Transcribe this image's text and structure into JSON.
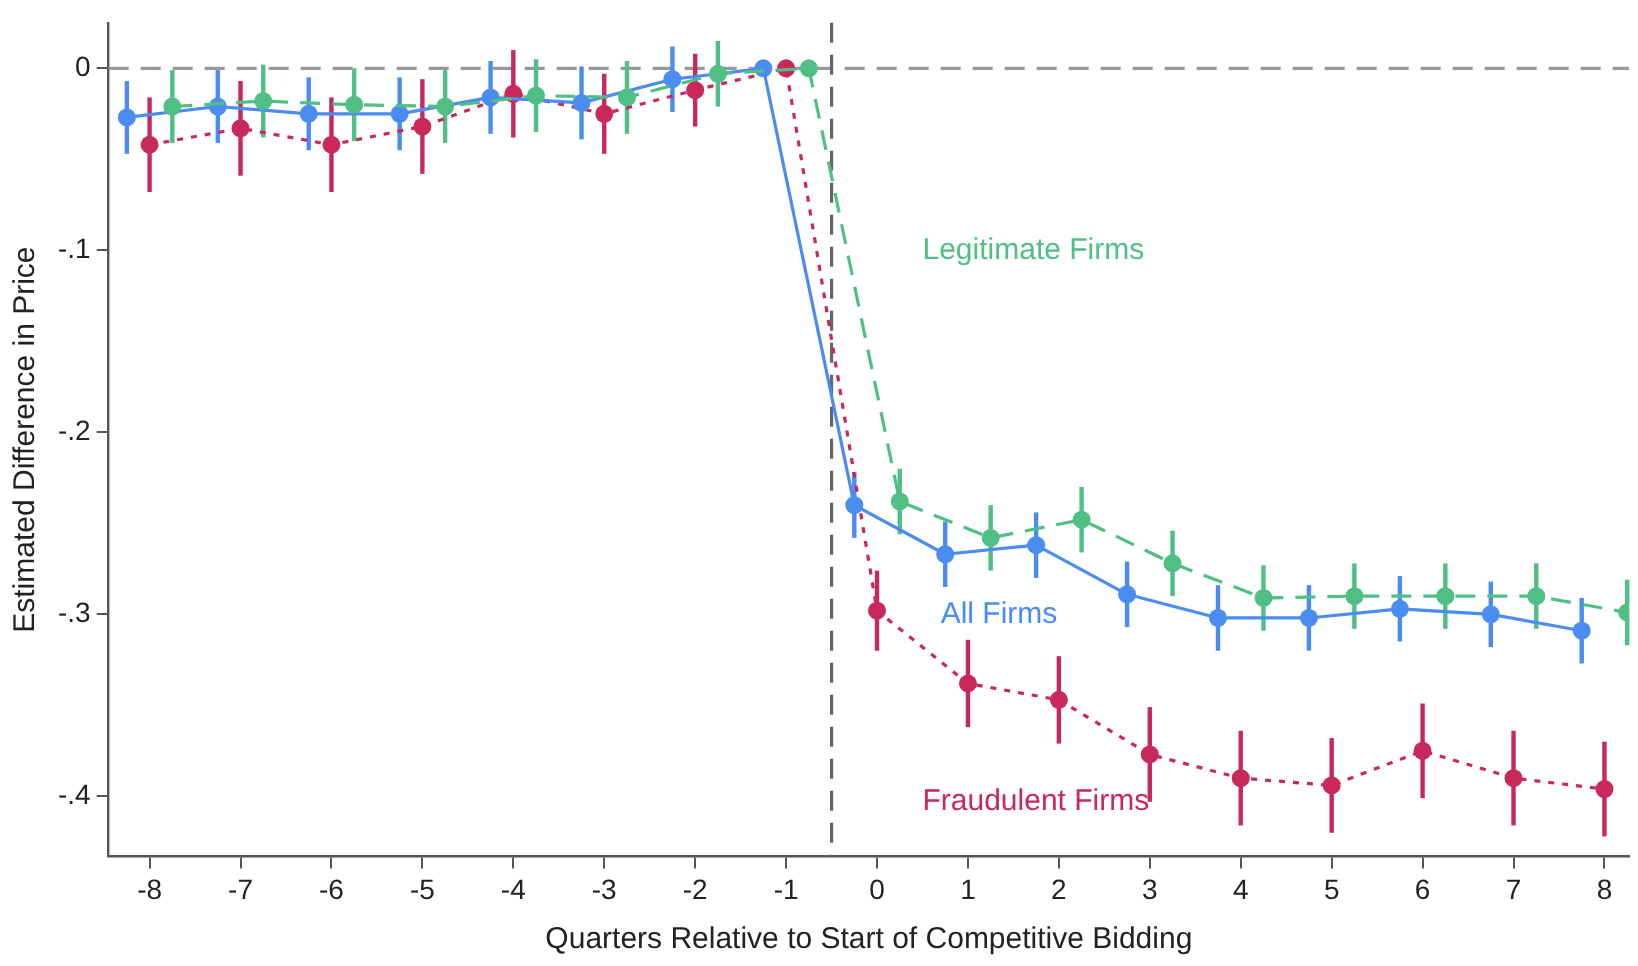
{
  "chart_data": {
    "type": "line",
    "xlabel": "Quarters Relative to Start of Competitive Bidding",
    "ylabel": "Estimated Difference in Price",
    "xlim": [
      -8.45,
      8.27
    ],
    "xticks": [
      -8,
      -7,
      -6,
      -5,
      -4,
      -3,
      -2,
      -1,
      0,
      1,
      2,
      3,
      4,
      5,
      6,
      7,
      8
    ],
    "ylim": [
      -0.433,
      0.025
    ],
    "yticks": [
      {
        "value": 0,
        "label": "0"
      },
      {
        "value": -0.1,
        "label": "-.1"
      },
      {
        "value": -0.2,
        "label": "-.2"
      },
      {
        "value": -0.3,
        "label": "-.3"
      },
      {
        "value": -0.4,
        "label": "-.4"
      }
    ],
    "grid": false,
    "legend": false,
    "marker": "circle",
    "ref_lines": [
      {
        "axis": "y",
        "value": 0,
        "color": "#999999",
        "line_style": "dashed"
      },
      {
        "axis": "x",
        "value": -0.5,
        "color": "#666666",
        "line_style": "dashed"
      }
    ],
    "series": [
      {
        "name": "Legitimate Firms",
        "color": "#4fbf84",
        "line_style": "dashed",
        "x": [
          -7.75,
          -6.75,
          -5.75,
          -4.75,
          -3.75,
          -2.75,
          -1.75,
          -0.75,
          0.25,
          1.25,
          2.25,
          3.25,
          4.25,
          5.25,
          6.25,
          7.25,
          8.25
        ],
        "values": [
          -0.021,
          -0.018,
          -0.02,
          -0.021,
          -0.015,
          -0.016,
          -0.003,
          0,
          -0.238,
          -0.258,
          -0.248,
          -0.272,
          -0.291,
          -0.29,
          -0.29,
          -0.29,
          -0.299
        ],
        "errors": [
          0.02,
          0.02,
          0.02,
          0.02,
          0.02,
          0.02,
          0.018,
          null,
          0.018,
          0.018,
          0.018,
          0.018,
          0.018,
          0.018,
          0.018,
          0.018,
          0.018
        ]
      },
      {
        "name": "All Firms",
        "color": "#4a8cf0",
        "line_style": "solid",
        "x": [
          -8.25,
          -7.25,
          -6.25,
          -5.25,
          -4.25,
          -3.25,
          -2.25,
          -1.25,
          -0.25,
          0.75,
          1.75,
          2.75,
          3.75,
          4.75,
          5.75,
          6.75,
          7.75
        ],
        "values": [
          -0.027,
          -0.021,
          -0.025,
          -0.025,
          -0.016,
          -0.019,
          -0.006,
          0,
          -0.24,
          -0.267,
          -0.262,
          -0.289,
          -0.302,
          -0.302,
          -0.297,
          -0.3,
          -0.309
        ],
        "errors": [
          0.02,
          0.02,
          0.02,
          0.02,
          0.02,
          0.02,
          0.018,
          null,
          0.018,
          0.018,
          0.018,
          0.018,
          0.018,
          0.018,
          0.018,
          0.018,
          0.018
        ]
      },
      {
        "name": "Fraudulent Firms",
        "color": "#c8285a",
        "line_style": "dotted",
        "x": [
          -8,
          -7,
          -6,
          -5,
          -4,
          -3,
          -2,
          -1,
          0,
          1,
          2,
          3,
          4,
          5,
          6,
          7,
          8
        ],
        "values": [
          -0.042,
          -0.033,
          -0.042,
          -0.032,
          -0.014,
          -0.025,
          -0.012,
          0,
          -0.298,
          -0.338,
          -0.347,
          -0.377,
          -0.39,
          -0.394,
          -0.375,
          -0.39,
          -0.396
        ],
        "errors": [
          0.026,
          0.026,
          0.026,
          0.026,
          0.024,
          0.022,
          0.02,
          null,
          0.022,
          0.024,
          0.024,
          0.026,
          0.026,
          0.026,
          0.026,
          0.026,
          0.026
        ]
      }
    ]
  }
}
